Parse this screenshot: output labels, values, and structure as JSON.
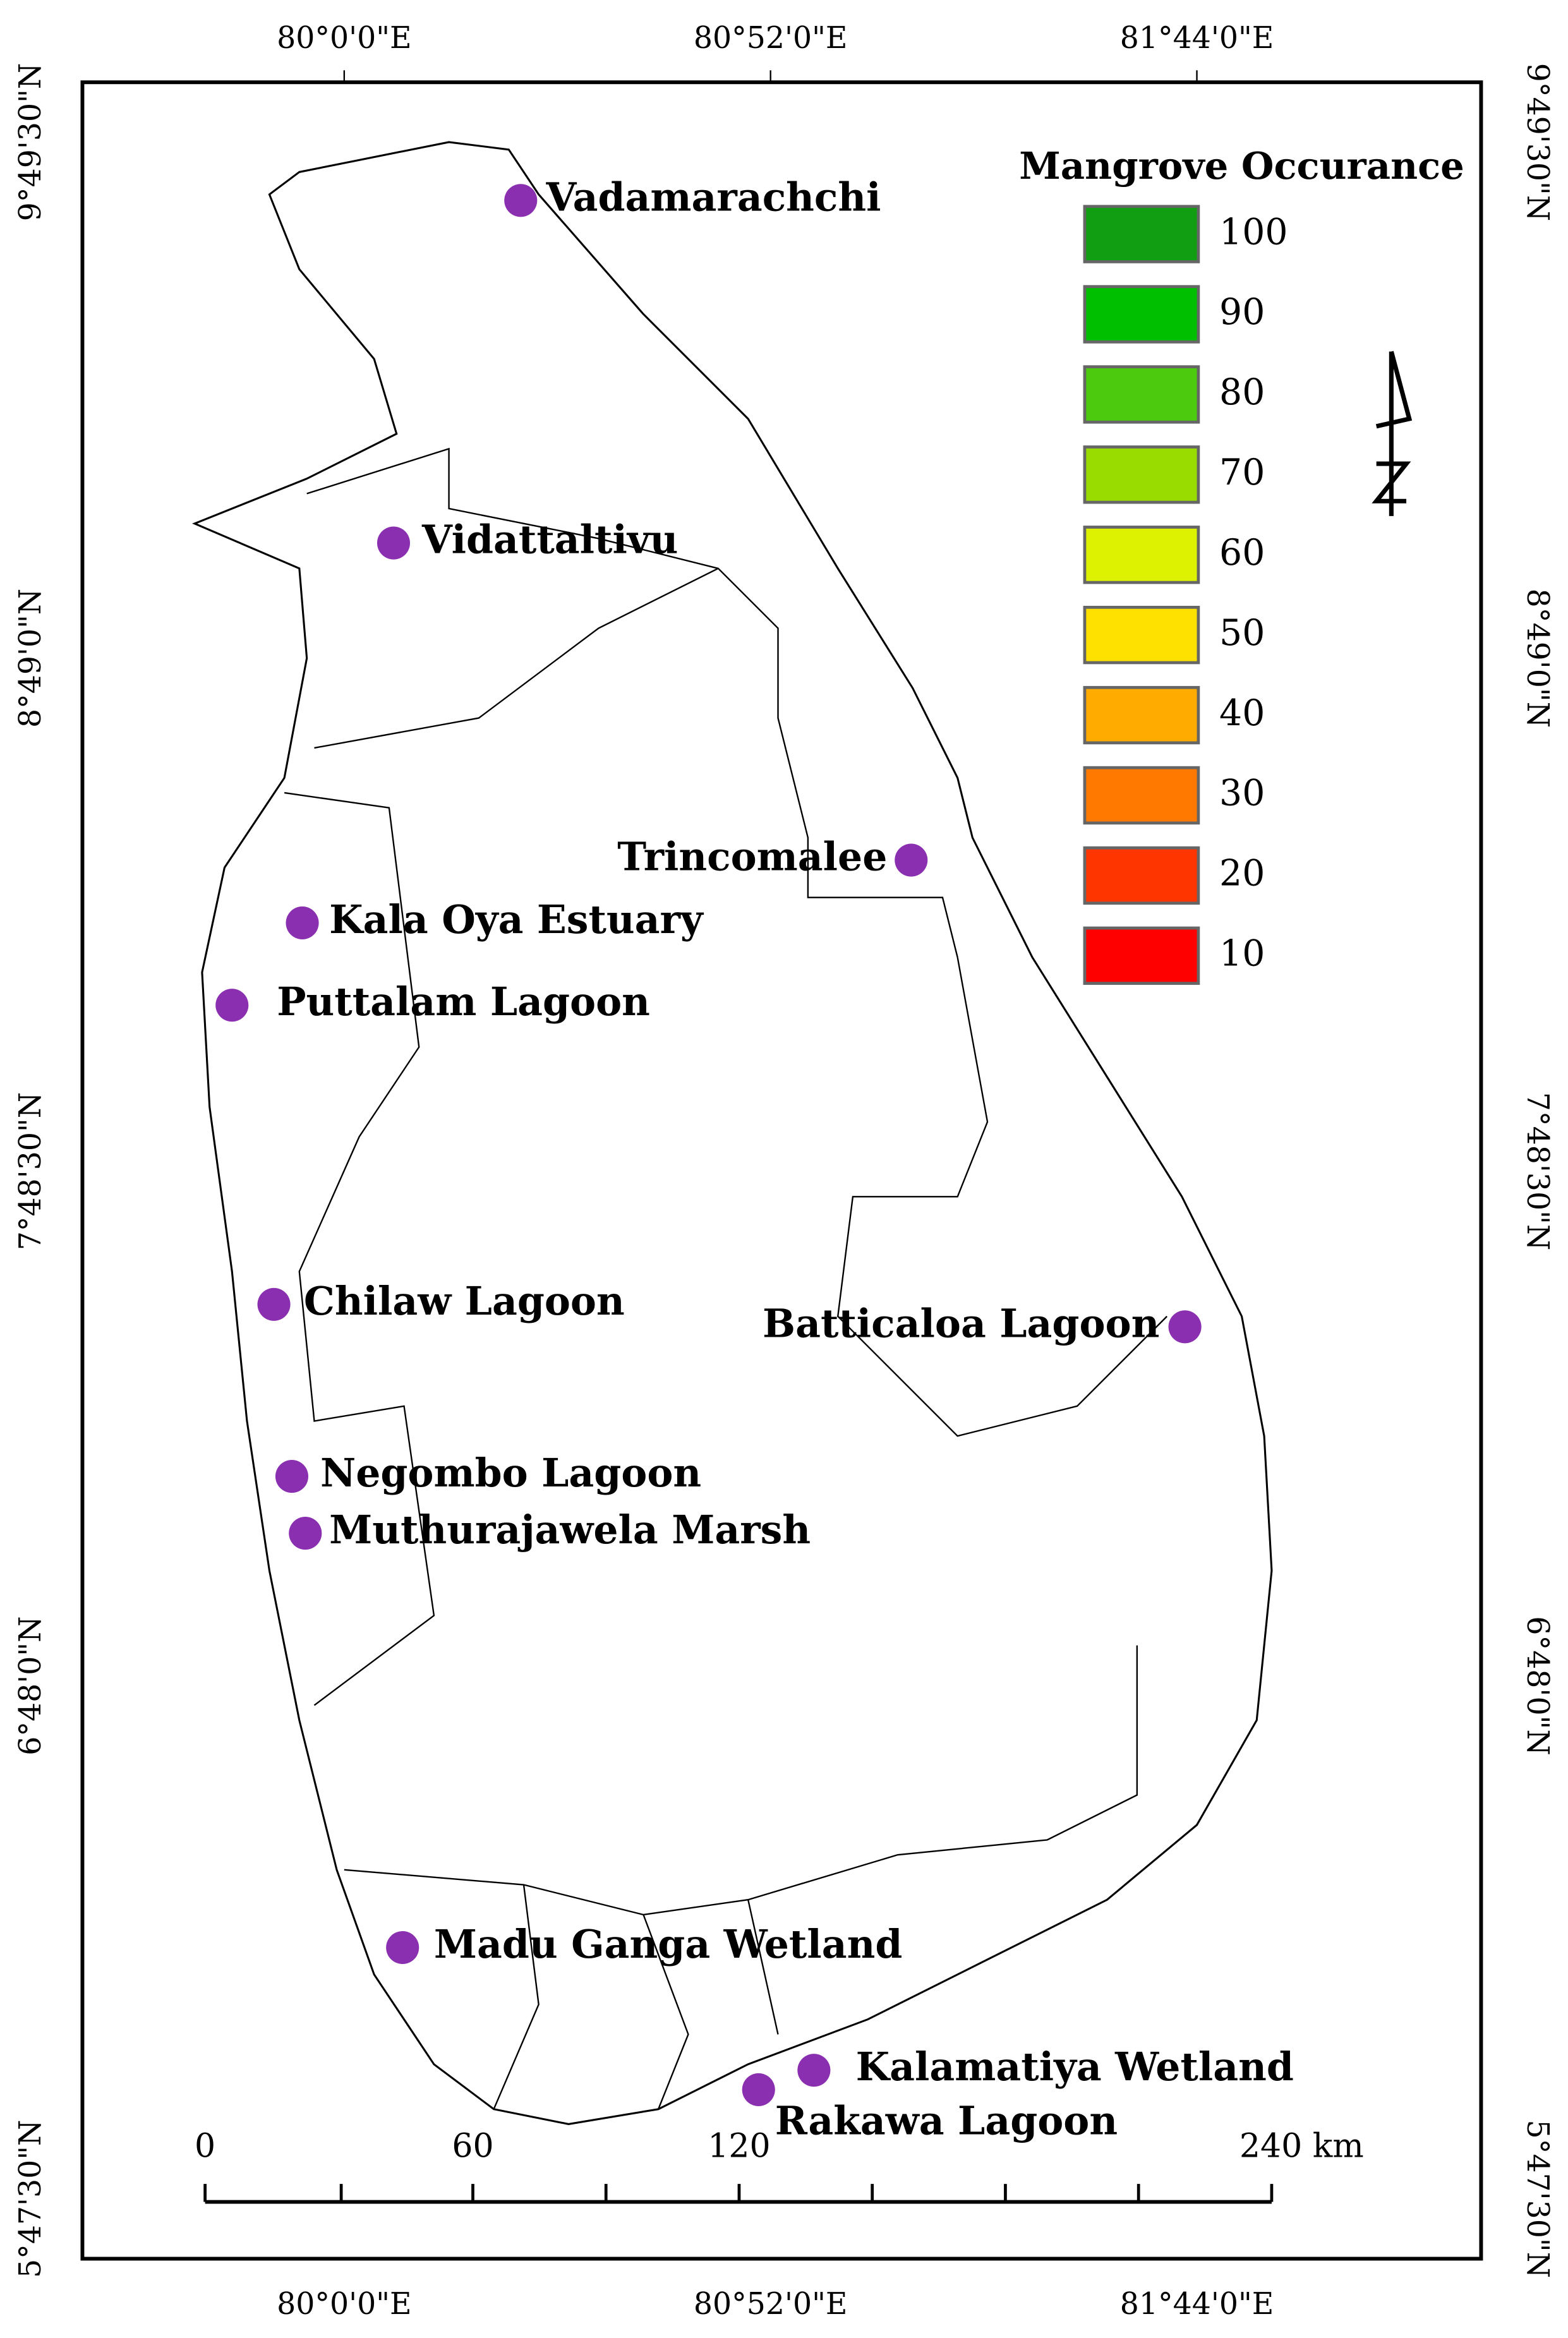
{
  "legend": {
    "title": "Mangrove Occurance",
    "classes": [
      {
        "value": 100,
        "color": "#129e12"
      },
      {
        "value": 90,
        "color": "#00bf00"
      },
      {
        "value": 80,
        "color": "#4ccb0e"
      },
      {
        "value": 70,
        "color": "#99dc00"
      },
      {
        "value": 60,
        "color": "#dcf200"
      },
      {
        "value": 50,
        "color": "#ffe100"
      },
      {
        "value": 40,
        "color": "#ffab00"
      },
      {
        "value": 30,
        "color": "#ff7800"
      },
      {
        "value": 20,
        "color": "#ff3500"
      },
      {
        "value": 10,
        "color": "#ff0000"
      }
    ]
  },
  "longitude_labels": [
    "80°0'0\"E",
    "80°52'0\"E",
    "81°44'0\"E"
  ],
  "latitude_labels": [
    "9°49'30\"N",
    "8°49'0\"N",
    "7°48'30\"N",
    "6°48'0\"N",
    "5°47'30\"N"
  ],
  "sites": [
    "Vadamarachchi",
    "Vidattaltivu",
    "Trincomalee",
    "Kala Oya Estuary",
    "Puttalam Lagoon",
    "Chilaw Lagoon",
    "Batticaloa Lagoon",
    "Negombo Lagoon",
    "Muthurajawela Marsh",
    "Madu Ganga Wetland",
    "Kalamatiya Wetland",
    "Rakawa Lagoon"
  ],
  "site_color": "#8a2fb0",
  "scale_bar": [
    "0",
    "60",
    "120",
    "240 km"
  ]
}
